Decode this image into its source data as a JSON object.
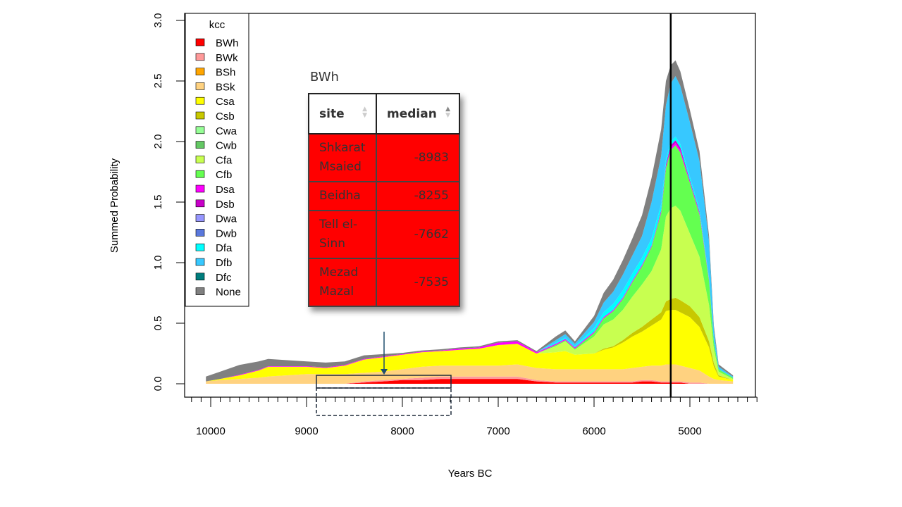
{
  "chart_data": {
    "type": "area",
    "stacked": true,
    "xlabel": "Years BC",
    "ylabel": "Summed Probability",
    "xlim": [
      10200,
      4300
    ],
    "ylim": [
      0,
      3.0
    ],
    "x_ticks": [
      10000,
      9000,
      8000,
      7000,
      6000,
      5000
    ],
    "x_tick_labels": [
      "10000",
      "9000",
      "8000",
      "7000",
      "6000",
      "5000"
    ],
    "y_ticks": [
      0,
      0.5,
      1.0,
      1.5,
      2.0,
      2.5,
      3.0
    ],
    "y_tick_labels": [
      "0.0",
      "0.5",
      "1.0",
      "1.5",
      "2.0",
      "2.5",
      "3.0"
    ],
    "vertical_line": 5200,
    "legend_title": "kcc",
    "legend_position": "top-left",
    "x": [
      10050,
      9900,
      9700,
      9500,
      9400,
      9200,
      9000,
      8800,
      8600,
      8400,
      8200,
      8000,
      7800,
      7600,
      7400,
      7200,
      7000,
      6800,
      6600,
      6400,
      6300,
      6200,
      6000,
      5900,
      5800,
      5700,
      5600,
      5500,
      5400,
      5300,
      5250,
      5200,
      5150,
      5100,
      5000,
      4900,
      4800,
      4750,
      4700,
      4550
    ],
    "series": [
      {
        "name": "BWh",
        "color": "#ff0000",
        "values": [
          0,
          0,
          0,
          0,
          0,
          0,
          0,
          0,
          0,
          0.01,
          0.02,
          0.03,
          0.03,
          0.04,
          0.04,
          0.04,
          0.04,
          0.04,
          0.02,
          0.01,
          0.01,
          0.01,
          0.01,
          0.01,
          0.01,
          0.01,
          0.01,
          0.02,
          0.02,
          0.01,
          0.01,
          0.01,
          0.01,
          0.01,
          0,
          0,
          0,
          0,
          0,
          0
        ]
      },
      {
        "name": "BWk",
        "color": "#ff9999",
        "values": [
          0,
          0,
          0,
          0,
          0,
          0,
          0,
          0,
          0,
          0.01,
          0.01,
          0.01,
          0.02,
          0.02,
          0.02,
          0.02,
          0.02,
          0.02,
          0.01,
          0.01,
          0.01,
          0.01,
          0.01,
          0.01,
          0.01,
          0.01,
          0.01,
          0.01,
          0.01,
          0.01,
          0.01,
          0.01,
          0.01,
          0.01,
          0.01,
          0.01,
          0,
          0,
          0,
          0
        ]
      },
      {
        "name": "BSh",
        "color": "#ffa500",
        "values": [
          0,
          0,
          0,
          0,
          0,
          0,
          0,
          0,
          0,
          0,
          0,
          0,
          0,
          0,
          0,
          0,
          0,
          0,
          0,
          0,
          0,
          0,
          0,
          0,
          0,
          0,
          0,
          0,
          0,
          0,
          0,
          0,
          0,
          0,
          0,
          0,
          0,
          0,
          0,
          0
        ]
      },
      {
        "name": "BSk",
        "color": "#ffd280",
        "values": [
          0.02,
          0.03,
          0.04,
          0.05,
          0.06,
          0.07,
          0.08,
          0.08,
          0.08,
          0.07,
          0.07,
          0.08,
          0.09,
          0.09,
          0.09,
          0.09,
          0.09,
          0.1,
          0.1,
          0.1,
          0.1,
          0.1,
          0.1,
          0.1,
          0.1,
          0.1,
          0.11,
          0.11,
          0.12,
          0.13,
          0.14,
          0.14,
          0.14,
          0.13,
          0.12,
          0.1,
          0.06,
          0.04,
          0.03,
          0.02
        ]
      },
      {
        "name": "Csa",
        "color": "#ffff00",
        "values": [
          0,
          0.01,
          0.03,
          0.06,
          0.08,
          0.07,
          0.06,
          0.05,
          0.07,
          0.11,
          0.12,
          0.12,
          0.12,
          0.12,
          0.13,
          0.14,
          0.17,
          0.17,
          0.12,
          0.14,
          0.15,
          0.12,
          0.13,
          0.16,
          0.18,
          0.22,
          0.26,
          0.29,
          0.33,
          0.38,
          0.44,
          0.45,
          0.45,
          0.44,
          0.42,
          0.36,
          0.24,
          0.1,
          0.03,
          0.01
        ]
      },
      {
        "name": "Csb",
        "color": "#c8c800",
        "values": [
          0,
          0,
          0,
          0,
          0,
          0,
          0,
          0,
          0,
          0,
          0,
          0,
          0,
          0,
          0,
          0,
          0,
          0,
          0,
          0,
          0,
          0,
          0,
          0.01,
          0.01,
          0.02,
          0.03,
          0.04,
          0.05,
          0.06,
          0.08,
          0.09,
          0.1,
          0.1,
          0.09,
          0.08,
          0.05,
          0.03,
          0.01,
          0
        ]
      },
      {
        "name": "Cwa",
        "color": "#96ff96",
        "values": [
          0,
          0,
          0,
          0,
          0,
          0,
          0,
          0,
          0,
          0,
          0,
          0,
          0,
          0,
          0,
          0,
          0,
          0,
          0,
          0,
          0,
          0,
          0,
          0,
          0,
          0,
          0,
          0,
          0,
          0,
          0,
          0,
          0,
          0,
          0,
          0,
          0,
          0,
          0,
          0
        ]
      },
      {
        "name": "Cwb",
        "color": "#64c864",
        "values": [
          0,
          0,
          0,
          0,
          0,
          0,
          0,
          0,
          0,
          0,
          0,
          0,
          0,
          0,
          0,
          0,
          0,
          0,
          0,
          0,
          0,
          0,
          0,
          0,
          0,
          0,
          0,
          0,
          0,
          0,
          0,
          0,
          0,
          0,
          0,
          0,
          0,
          0,
          0,
          0
        ]
      },
      {
        "name": "Cfa",
        "color": "#c8ff50",
        "values": [
          0,
          0,
          0,
          0,
          0,
          0,
          0,
          0,
          0,
          0,
          0,
          0,
          0,
          0,
          0,
          0,
          0,
          0,
          0,
          0.05,
          0.08,
          0.04,
          0.14,
          0.2,
          0.22,
          0.25,
          0.3,
          0.35,
          0.4,
          0.52,
          0.7,
          0.75,
          0.76,
          0.74,
          0.6,
          0.5,
          0.3,
          0.12,
          0.03,
          0.01
        ]
      },
      {
        "name": "Cfb",
        "color": "#64ff50",
        "values": [
          0,
          0,
          0,
          0,
          0,
          0,
          0,
          0,
          0,
          0,
          0,
          0,
          0,
          0,
          0,
          0,
          0,
          0,
          0,
          0.01,
          0.01,
          0.01,
          0.03,
          0.05,
          0.07,
          0.09,
          0.12,
          0.15,
          0.2,
          0.3,
          0.4,
          0.48,
          0.5,
          0.48,
          0.42,
          0.35,
          0.2,
          0.06,
          0.02,
          0.01
        ]
      },
      {
        "name": "Dsa",
        "color": "#ff00ff",
        "values": [
          0,
          0,
          0.005,
          0.005,
          0.005,
          0.005,
          0.005,
          0.005,
          0.005,
          0.005,
          0.005,
          0.005,
          0.005,
          0.005,
          0.01,
          0.01,
          0.02,
          0.02,
          0.01,
          0.01,
          0.01,
          0.01,
          0.01,
          0.01,
          0.01,
          0.01,
          0.01,
          0.01,
          0.01,
          0.01,
          0.01,
          0.02,
          0.02,
          0.02,
          0.01,
          0.01,
          0.01,
          0,
          0,
          0
        ]
      },
      {
        "name": "Dsb",
        "color": "#c800c8",
        "values": [
          0,
          0,
          0,
          0,
          0,
          0,
          0,
          0,
          0,
          0,
          0,
          0,
          0,
          0,
          0,
          0,
          0,
          0,
          0,
          0,
          0,
          0,
          0,
          0,
          0,
          0,
          0,
          0,
          0,
          0.01,
          0.02,
          0.02,
          0.02,
          0.02,
          0.01,
          0.01,
          0,
          0,
          0,
          0
        ]
      },
      {
        "name": "Dwa",
        "color": "#9696ff",
        "values": [
          0,
          0,
          0,
          0,
          0,
          0,
          0,
          0,
          0,
          0,
          0,
          0,
          0,
          0,
          0,
          0,
          0,
          0,
          0,
          0,
          0,
          0,
          0,
          0,
          0,
          0,
          0,
          0,
          0,
          0,
          0,
          0,
          0,
          0,
          0,
          0,
          0,
          0,
          0,
          0
        ]
      },
      {
        "name": "Dwb",
        "color": "#5a78dc",
        "values": [
          0,
          0,
          0,
          0,
          0,
          0,
          0,
          0,
          0,
          0,
          0,
          0,
          0,
          0,
          0,
          0,
          0,
          0,
          0,
          0,
          0,
          0,
          0,
          0,
          0,
          0,
          0,
          0,
          0,
          0,
          0,
          0,
          0,
          0,
          0,
          0,
          0,
          0,
          0,
          0
        ]
      },
      {
        "name": "Dfa",
        "color": "#00ffff",
        "values": [
          0,
          0,
          0,
          0,
          0,
          0,
          0,
          0,
          0,
          0,
          0,
          0,
          0,
          0,
          0,
          0,
          0,
          0,
          0,
          0.01,
          0.01,
          0.01,
          0.03,
          0.04,
          0.05,
          0.06,
          0.06,
          0.06,
          0.06,
          0.05,
          0.04,
          0.03,
          0.03,
          0.03,
          0.03,
          0.02,
          0.01,
          0,
          0,
          0
        ]
      },
      {
        "name": "Dfb",
        "color": "#37c8ff",
        "values": [
          0,
          0,
          0,
          0,
          0,
          0,
          0,
          0,
          0,
          0,
          0,
          0,
          0,
          0,
          0,
          0,
          0,
          0,
          0,
          0.02,
          0.03,
          0.02,
          0.05,
          0.08,
          0.1,
          0.13,
          0.15,
          0.18,
          0.3,
          0.4,
          0.45,
          0.48,
          0.5,
          0.48,
          0.45,
          0.4,
          0.3,
          0.1,
          0.02,
          0.01
        ]
      },
      {
        "name": "Dfc",
        "color": "#007d7d",
        "values": [
          0,
          0,
          0,
          0,
          0,
          0,
          0,
          0,
          0,
          0,
          0,
          0,
          0,
          0,
          0,
          0,
          0,
          0,
          0,
          0,
          0,
          0,
          0,
          0,
          0,
          0,
          0,
          0,
          0,
          0,
          0,
          0,
          0,
          0,
          0,
          0,
          0,
          0,
          0,
          0
        ]
      },
      {
        "name": "None",
        "color": "#808080",
        "values": [
          0.04,
          0.06,
          0.08,
          0.07,
          0.06,
          0.05,
          0.04,
          0.04,
          0.03,
          0.03,
          0.02,
          0.01,
          0.01,
          0.01,
          0.01,
          0.01,
          0.01,
          0.01,
          0.01,
          0.03,
          0.03,
          0.02,
          0.05,
          0.08,
          0.1,
          0.12,
          0.14,
          0.17,
          0.2,
          0.22,
          0.2,
          0.15,
          0.13,
          0.12,
          0.1,
          0.08,
          0.05,
          0.03,
          0.02,
          0.01
        ]
      }
    ]
  },
  "table": {
    "title": "BWh",
    "columns": [
      "site",
      "median"
    ],
    "rows": [
      {
        "site": "Shkarat Msaied",
        "median": "-8983"
      },
      {
        "site": "Beidha",
        "median": "-8255"
      },
      {
        "site": "Tell el-Sinn",
        "median": "-7662"
      },
      {
        "site": "Mezad Mazal",
        "median": "-7535"
      }
    ],
    "sort_icons": {
      "up": "▲",
      "down": "▼"
    }
  }
}
